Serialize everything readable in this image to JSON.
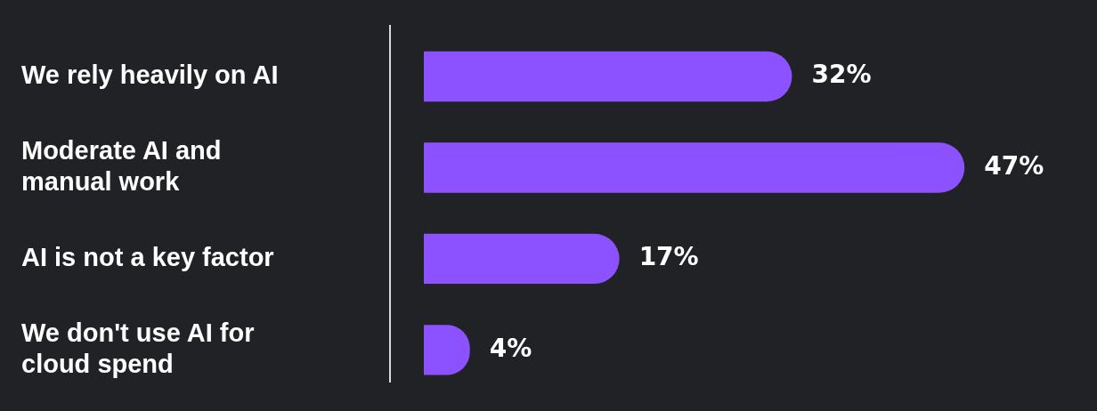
{
  "chart_data": {
    "type": "bar",
    "orientation": "horizontal",
    "categories": [
      "We rely heavily on AI",
      "Moderate AI and manual work",
      "AI is not a key factor",
      "We don't use AI for cloud spend"
    ],
    "values": [
      32,
      47,
      17,
      4
    ],
    "value_labels": [
      "32%",
      "47%",
      "17%",
      "4%"
    ],
    "color": "#8c52ff",
    "legend": false,
    "tick_labels": "y"
  }
}
